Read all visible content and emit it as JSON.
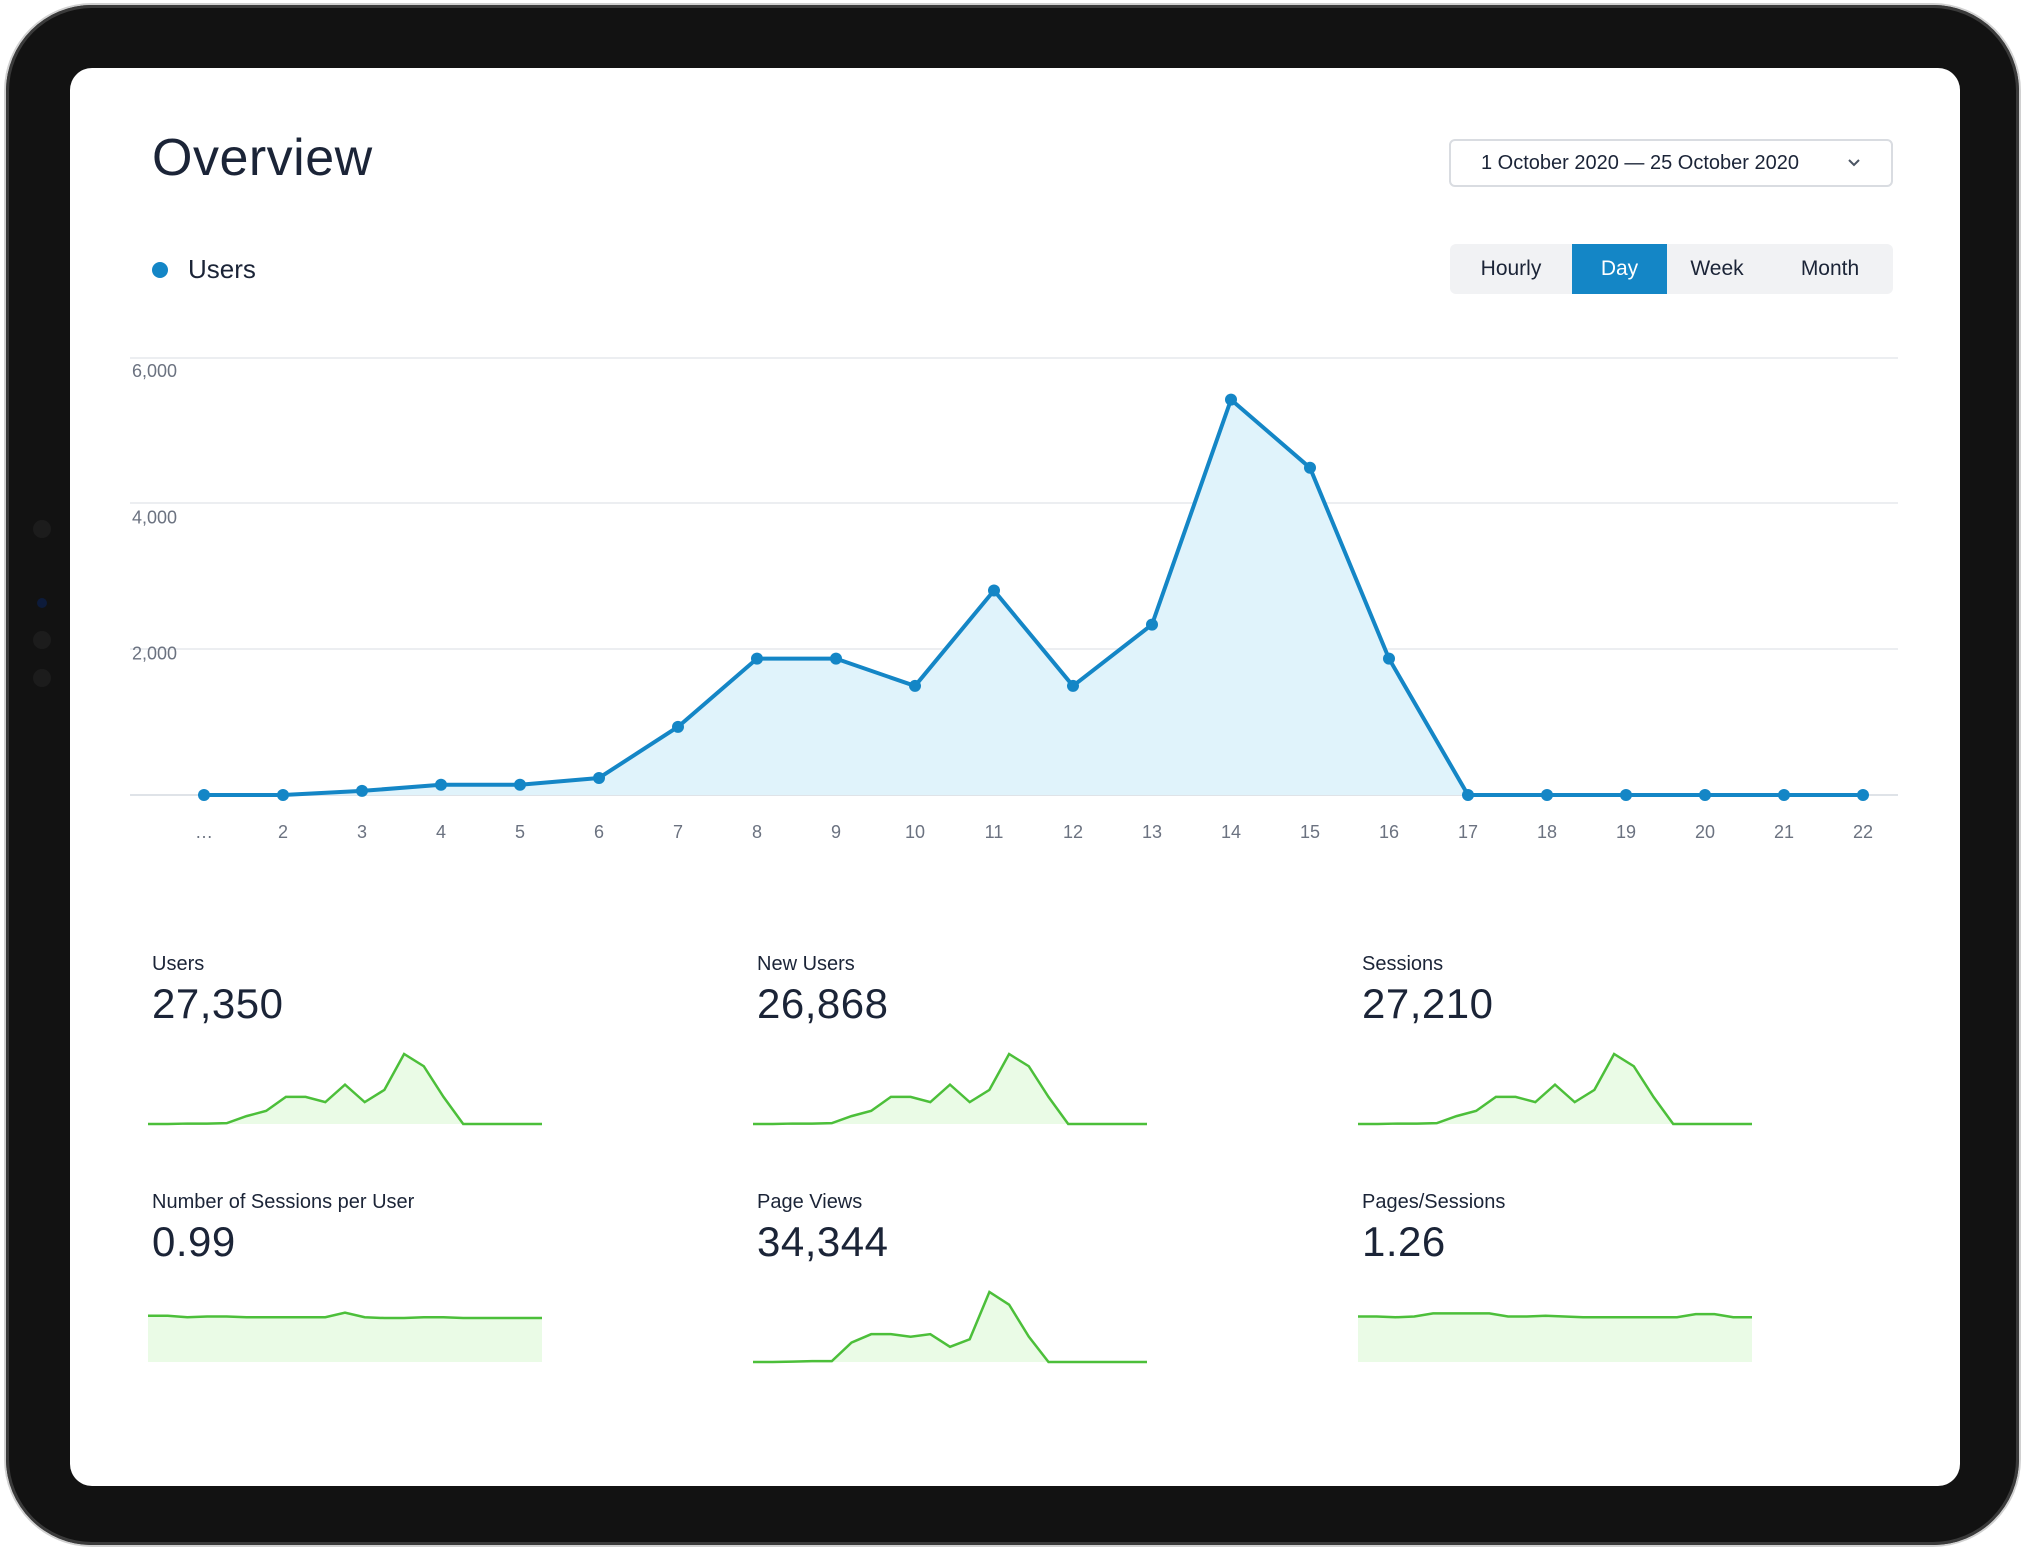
{
  "page": {
    "title": "Overview",
    "date_range": "1 October 2020 — 25 October 2020",
    "legend_label": "Users",
    "granularity_options": [
      "Hourly",
      "Day",
      "Week",
      "Month"
    ],
    "selected_granularity": "Day"
  },
  "chart_data": {
    "type": "area",
    "title": "",
    "xlabel": "",
    "ylabel": "",
    "series": [
      {
        "name": "Users",
        "color": "#1486c6",
        "fill": "#e0f3fb",
        "x": [
          "…",
          "2",
          "3",
          "4",
          "5",
          "6",
          "7",
          "8",
          "9",
          "10",
          "11",
          "12",
          "13",
          "14",
          "15",
          "16",
          "17",
          "18",
          "19",
          "20",
          "21",
          "22"
        ],
        "values": [
          0,
          0,
          60,
          150,
          150,
          250,
          1000,
          2000,
          2000,
          1600,
          3000,
          1600,
          2500,
          5800,
          4800,
          2000,
          0,
          0,
          0,
          0,
          0,
          0
        ]
      }
    ],
    "y_ticks": [
      "6,000",
      "4,000",
      "2,000"
    ],
    "ylim": [
      0,
      6000
    ],
    "grid": true
  },
  "kpis": [
    {
      "label": "Users",
      "value": "27,350",
      "spark": [
        0,
        0,
        0.05,
        0.05,
        0.1,
        0.9,
        1.5,
        3.1,
        3.1,
        2.5,
        4.5,
        2.5,
        3.9,
        8.0,
        6.6,
        3.1,
        0,
        0,
        0,
        0,
        0
      ]
    },
    {
      "label": "New Users",
      "value": "26,868",
      "spark": [
        0,
        0,
        0.05,
        0.05,
        0.1,
        0.9,
        1.5,
        3.1,
        3.1,
        2.5,
        4.5,
        2.5,
        3.9,
        8.0,
        6.6,
        3.1,
        0,
        0,
        0,
        0,
        0
      ]
    },
    {
      "label": "Sessions",
      "value": "27,210",
      "spark": [
        0,
        0,
        0.05,
        0.05,
        0.1,
        0.9,
        1.5,
        3.1,
        3.1,
        2.5,
        4.5,
        2.5,
        3.9,
        8.0,
        6.6,
        3.1,
        0,
        0,
        0,
        0,
        0
      ]
    },
    {
      "label": "Number of Sessions per User",
      "value": "0.99",
      "spark": [
        0.99,
        0.99,
        0.97,
        0.98,
        0.98,
        0.97,
        0.97,
        0.97,
        0.97,
        0.97,
        1.03,
        0.97,
        0.96,
        0.96,
        0.97,
        0.97,
        0.96,
        0.96,
        0.96,
        0.96,
        0.96
      ]
    },
    {
      "label": "Page Views",
      "value": "34,344",
      "spark": [
        0,
        0,
        0.05,
        0.1,
        0.1,
        2.3,
        3.3,
        3.3,
        3.0,
        3.3,
        1.8,
        2.7,
        8.3,
        6.8,
        3.0,
        0,
        0,
        0,
        0,
        0,
        0
      ]
    },
    {
      "label": "Pages/Sessions",
      "value": "1.26",
      "spark": [
        1.25,
        1.25,
        1.24,
        1.25,
        1.29,
        1.29,
        1.29,
        1.29,
        1.25,
        1.25,
        1.26,
        1.25,
        1.24,
        1.24,
        1.24,
        1.24,
        1.24,
        1.24,
        1.28,
        1.28,
        1.24,
        1.24
      ]
    }
  ]
}
